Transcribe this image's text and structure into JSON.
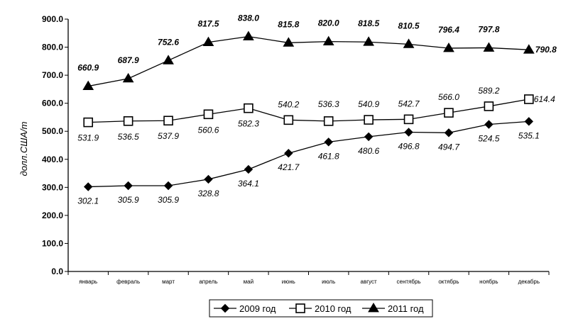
{
  "chart_data": {
    "type": "line",
    "ylabel": "долл.США/т",
    "ylim": [
      0,
      900
    ],
    "yticks": [
      "0.0",
      "100.0",
      "200.0",
      "300.0",
      "400.0",
      "500.0",
      "600.0",
      "700.0",
      "800.0",
      "900.0"
    ],
    "categories": [
      "январь",
      "февраль",
      "март",
      "апрель",
      "май",
      "июнь",
      "июль",
      "август",
      "сентябрь",
      "октябрь",
      "ноябрь",
      "декабрь"
    ],
    "legend_position": "bottom",
    "grid": false,
    "series": [
      {
        "name": "2009 год",
        "marker": "diamond",
        "values": [
          302.1,
          305.9,
          305.9,
          328.8,
          364.1,
          421.7,
          461.8,
          480.6,
          496.8,
          494.7,
          524.5,
          535.1
        ],
        "labels": [
          "302.1",
          "305.9",
          "305.9",
          "328.8",
          "364.1",
          "421.7",
          "461.8",
          "480.6",
          "496.8",
          "494.7",
          "524.5",
          "535.1"
        ]
      },
      {
        "name": "2010 год",
        "marker": "square",
        "values": [
          531.9,
          536.5,
          537.9,
          560.6,
          582.3,
          540.2,
          536.3,
          540.9,
          542.7,
          566.0,
          589.2,
          614.4
        ],
        "labels": [
          "531.9",
          "536.5",
          "537.9",
          "560.6",
          "582.3",
          "540.2",
          "536.3",
          "540.9",
          "542.7",
          "566.0",
          "589.2",
          "614.4"
        ]
      },
      {
        "name": "2011 год",
        "marker": "triangle",
        "values": [
          660.9,
          687.9,
          752.6,
          817.5,
          838.0,
          815.8,
          820.0,
          818.5,
          810.5,
          796.4,
          797.8,
          790.8
        ],
        "labels": [
          "660.9",
          "687.9",
          "752.6",
          "817.5",
          "838.0",
          "815.8",
          "820.0",
          "818.5",
          "810.5",
          "796.4",
          "797.8",
          "790.8"
        ]
      }
    ]
  }
}
